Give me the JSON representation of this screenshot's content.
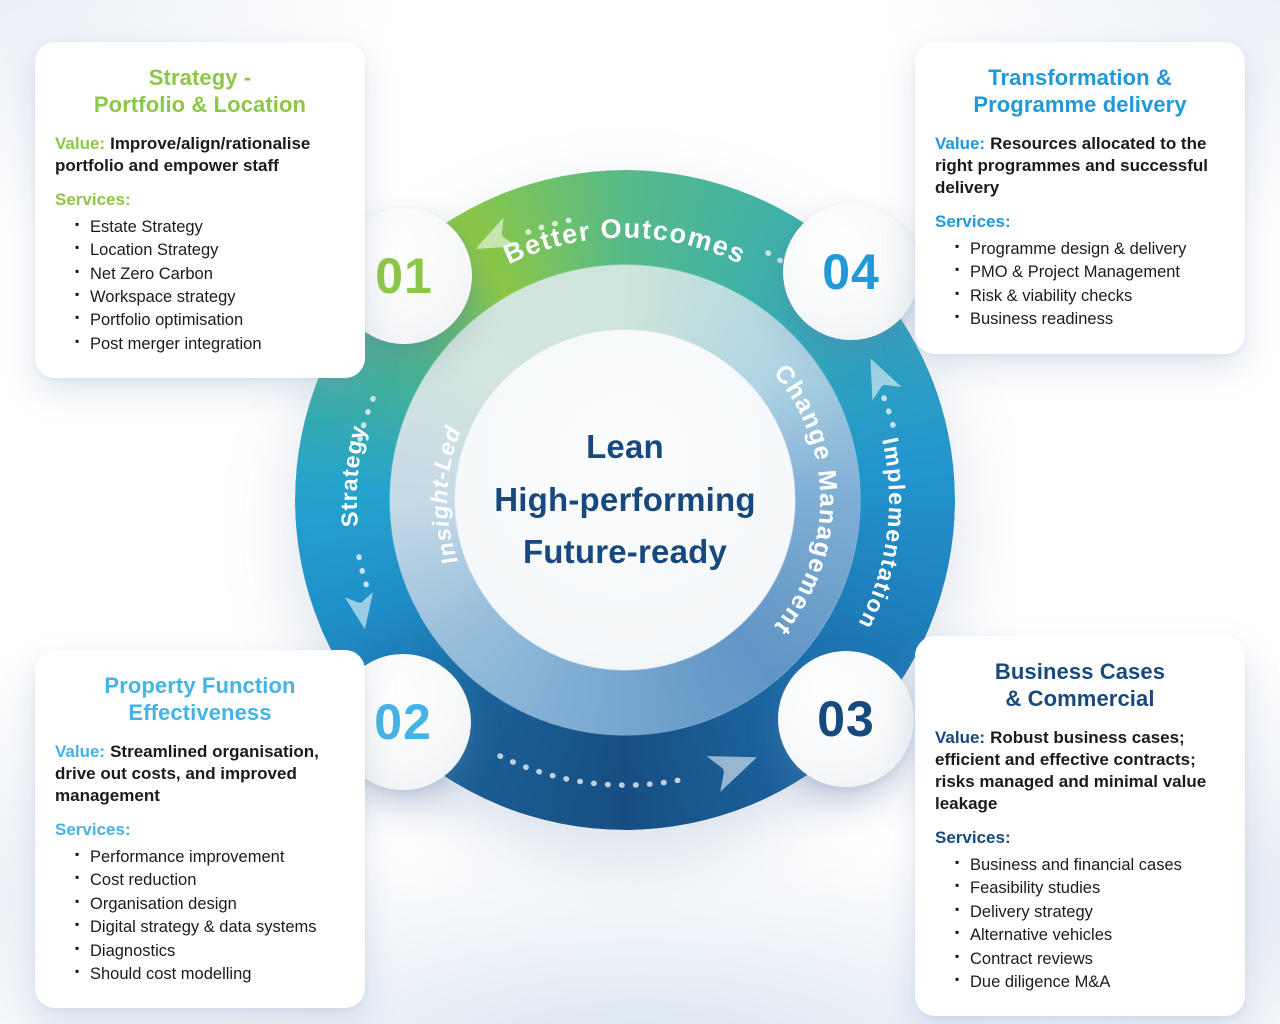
{
  "center_circle": {
    "text": "Lean\nHigh-performing\nFuture-ready",
    "text_color": "#17497D"
  },
  "ring_labels": {
    "top": "Better Outcomes",
    "left_outer": "Strategy",
    "left_inner": "Insight-Led",
    "right_inner": "Change Management",
    "right_outer": "Implementation"
  },
  "ring_colors": {
    "outer_green": "#8CC747",
    "outer_teal": "#37ADB3",
    "outer_blue": "#2294CF",
    "outer_navy": "#174E82",
    "inner_pale_mint": "#CDE5DB",
    "inner_steel_blue": "#6095C5"
  },
  "flow_direction": "counterclockwise",
  "steps": [
    {
      "number": "01",
      "accent": "#8CC747",
      "title": "Strategy -\nPortfolio & Location",
      "value_label": "Value:",
      "value": "Improve/align/rationalise portfolio and empower staff",
      "services_label": "Services:",
      "services": [
        "Estate Strategy",
        "Location Strategy",
        "Net Zero Carbon",
        "Workspace strategy",
        "Portfolio optimisation",
        "Post merger integration"
      ]
    },
    {
      "number": "02",
      "accent": "#45B3E5",
      "title": "Property Function\nEffectiveness",
      "value_label": "Value:",
      "value": "Streamlined organisation, drive out costs, and improved management",
      "services_label": "Services:",
      "services": [
        "Performance improvement",
        "Cost reduction",
        "Organisation design",
        "Digital strategy & data systems",
        "Diagnostics",
        "Should cost modelling"
      ]
    },
    {
      "number": "03",
      "accent": "#17497D",
      "title": "Business Cases\n& Commercial",
      "value_label": "Value:",
      "value": "Robust business cases; efficient and effective contracts; risks managed and minimal value leakage",
      "services_label": "Services:",
      "services": [
        "Business and financial cases",
        "Feasibility studies",
        "Delivery strategy",
        "Alternative vehicles",
        "Contract reviews",
        "Due diligence M&A"
      ]
    },
    {
      "number": "04",
      "accent": "#2199D8",
      "title": "Transformation &\nProgramme delivery",
      "value_label": "Value:",
      "value": "Resources allocated to the right programmes and successful delivery",
      "services_label": "Services:",
      "services": [
        "Programme design & delivery",
        "PMO & Project Management",
        "Risk & viability checks",
        "Business readiness"
      ]
    }
  ]
}
